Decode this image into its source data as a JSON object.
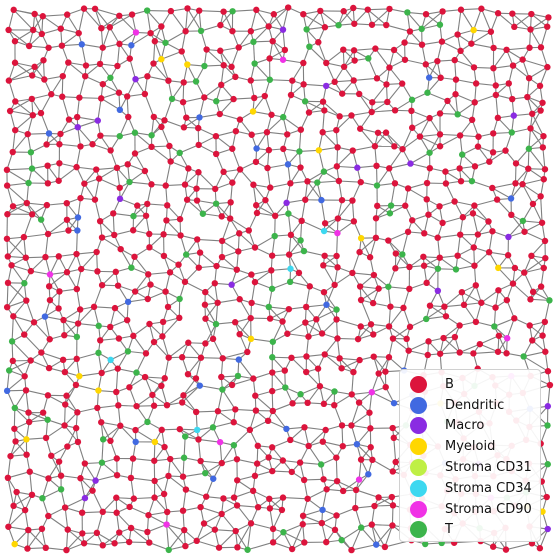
{
  "chart_data": {
    "type": "network graph",
    "legend": {
      "placement": "lower-right",
      "entries": [
        {
          "label": "B",
          "color": "#dc143c"
        },
        {
          "label": "Dendritic",
          "color": "#4169e1"
        },
        {
          "label": "Macro",
          "color": "#8a2be2"
        },
        {
          "label": "Myeloid",
          "color": "#ffd700"
        },
        {
          "label": "Stroma CD31",
          "color": "#bfef45"
        },
        {
          "label": "Stroma CD34",
          "color": "#3dd8f0"
        },
        {
          "label": "Stroma CD90",
          "color": "#f032e6"
        },
        {
          "label": "T",
          "color": "#3cb44b"
        }
      ]
    },
    "edge_color": "#808080",
    "node_composition": {
      "B": 0.82,
      "T": 0.11,
      "Dendritic": 0.03,
      "Macro": 0.012,
      "Myeloid": 0.012,
      "Stroma CD34": 0.008,
      "Stroma CD90": 0.008,
      "Stroma CD31": 0.0
    },
    "node_count_approx": 1000
  }
}
